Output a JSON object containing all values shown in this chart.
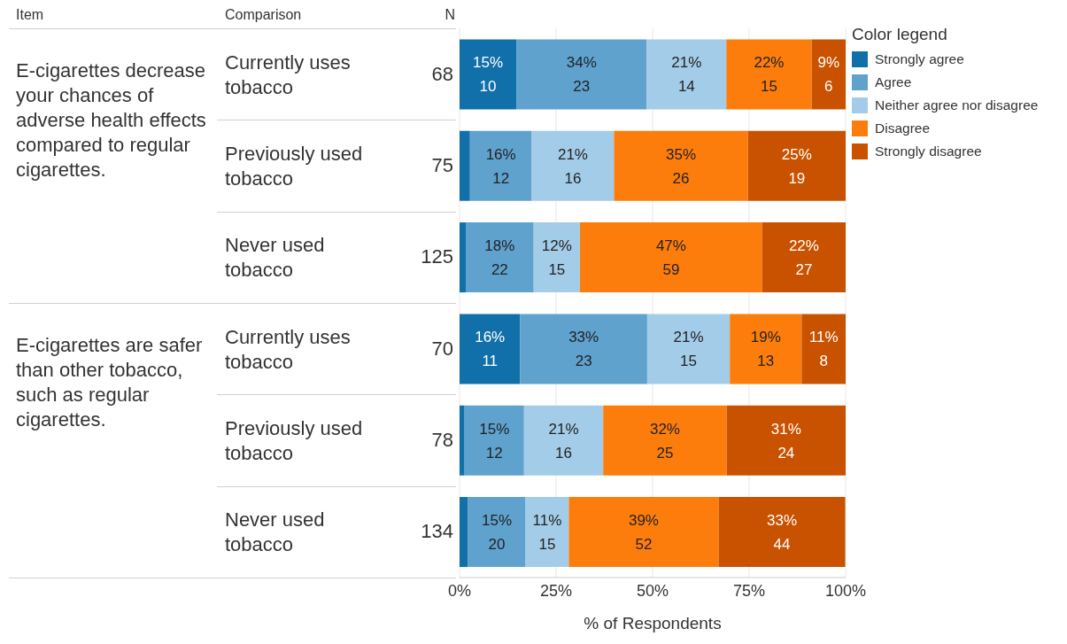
{
  "chart_data": {
    "type": "bar",
    "orientation": "horizontal",
    "stacked": true,
    "xlabel": "% of Respondents",
    "legend_title": "Color legend",
    "legend": "right",
    "grid": "x",
    "categories": [
      "Currently uses tobacco",
      "Previously used tobacco",
      "Never used tobacco",
      "Currently uses tobacco",
      "Previously used tobacco",
      "Never used tobacco"
    ],
    "xlim": [
      0,
      100
    ],
    "xticks": [
      {
        "value": 0,
        "label": "0%"
      },
      {
        "value": 25,
        "label": "25%"
      },
      {
        "value": 50,
        "label": "50%"
      },
      {
        "value": 75,
        "label": "75%"
      },
      {
        "value": 100,
        "label": "100%"
      }
    ],
    "series": [
      {
        "name": "Strongly agree",
        "color": "#1170aa",
        "values": [
          14.7,
          2.7,
          1.6,
          15.7,
          1.3,
          2.2
        ],
        "value_labels": [
          "15%\n10",
          null,
          null,
          "16%\n11",
          null,
          null
        ]
      },
      {
        "name": "Agree",
        "color": "#5fa2ce",
        "values": [
          33.8,
          16.0,
          17.6,
          32.9,
          15.4,
          14.9
        ],
        "value_labels": [
          "34%\n23",
          "16%\n12",
          "18%\n22",
          "33%\n23",
          "15%\n12",
          "15%\n20"
        ]
      },
      {
        "name": "Neither agree nor disagree",
        "color": "#a3cce9",
        "values": [
          20.6,
          21.3,
          12.0,
          21.4,
          20.5,
          11.2
        ],
        "value_labels": [
          "21%\n14",
          "21%\n16",
          "12%\n15",
          "21%\n15",
          "21%\n16",
          "11%\n15"
        ]
      },
      {
        "name": "Disagree",
        "color": "#fc7d0b",
        "values": [
          22.1,
          34.7,
          47.2,
          18.6,
          32.0,
          38.8
        ],
        "value_labels": [
          "22%\n15",
          "35%\n26",
          "47%\n59",
          "19%\n13",
          "32%\n25",
          "39%\n52"
        ]
      },
      {
        "name": "Strongly disagree",
        "color": "#c85200",
        "values": [
          8.8,
          25.3,
          21.6,
          11.4,
          30.8,
          32.8
        ],
        "value_labels": [
          "9%\n6",
          "25%\n19",
          "22%\n27",
          "11%\n8",
          "31%\n24",
          "33%\n44"
        ]
      }
    ],
    "annotations": [
      "Item",
      "Comparison",
      "N",
      "E-cigarettes decrease your chances of adverse health effects compared to regular cigarettes.",
      "E-cigarettes are safer than other tobacco, such as regular cigarettes.",
      "68",
      "75",
      "125",
      "70",
      "78",
      "134"
    ]
  }
}
